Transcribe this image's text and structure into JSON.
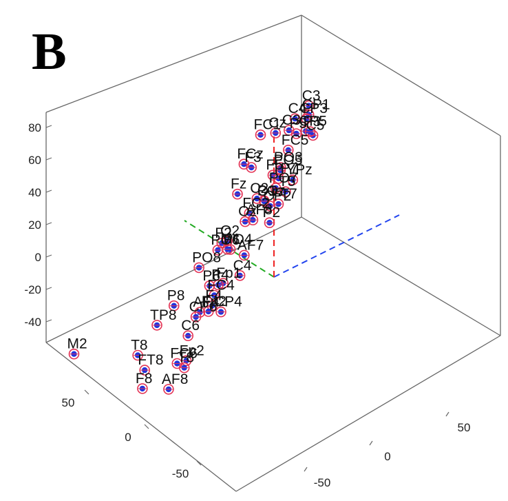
{
  "panel_label": "B",
  "chart_data": {
    "type": "scatter",
    "projection": "3d",
    "title": "",
    "xlabel": "",
    "ylabel": "",
    "zlabel": "",
    "xlim": [
      -80,
      80
    ],
    "ylim": [
      -80,
      80
    ],
    "zlim": [
      -60,
      90
    ],
    "z_ticks": [
      "80",
      "60",
      "40",
      "20",
      "0",
      "-20",
      "-40"
    ],
    "x_ticks": [
      "50",
      "0",
      "-50"
    ],
    "y_ticks": [
      "50",
      "0",
      "-50"
    ],
    "grid": false,
    "marker_colors": {
      "fill": "#2233dd",
      "ring": "#e33355"
    },
    "axis_colors": {
      "x": "#22aa22",
      "y": "#2244ee",
      "z": "#ee2222"
    },
    "electrodes": [
      {
        "label": "FC1",
        "x": 5,
        "y": -5,
        "z": 88
      },
      {
        "label": "C4",
        "x": 12,
        "y": 22,
        "z": 82
      },
      {
        "label": "C3",
        "x": 22,
        "y": 38,
        "z": 78
      },
      {
        "label": "C3",
        "x": 9,
        "y": 16,
        "z": 79
      },
      {
        "label": "Cz",
        "x": 7,
        "y": 6,
        "z": 83
      },
      {
        "label": "FCz",
        "x": -4,
        "y": -22,
        "z": 82
      },
      {
        "label": "F3",
        "x": 2,
        "y": -13,
        "z": 73
      },
      {
        "label": "Fz",
        "x": -15,
        "y": -34,
        "z": 74
      },
      {
        "label": "CP1",
        "x": 29,
        "y": 43,
        "z": 67
      },
      {
        "label": "CP3",
        "x": 41,
        "y": 50,
        "z": 56
      },
      {
        "label": "C5",
        "x": 38,
        "y": 52,
        "z": 46
      },
      {
        "label": "FC5",
        "x": 18,
        "y": 22,
        "z": 60
      },
      {
        "label": "F5",
        "x": 8,
        "y": 5,
        "z": 57
      },
      {
        "label": "C2",
        "x": -3,
        "y": -13,
        "z": 56
      },
      {
        "label": "FC2",
        "x": -13,
        "y": -25,
        "z": 57
      },
      {
        "label": "AF8",
        "x": -12,
        "y": -22,
        "z": 51
      },
      {
        "label": "F2",
        "x": -22,
        "y": -49,
        "z": 54
      },
      {
        "label": "CP5",
        "x": 57,
        "y": 61,
        "z": 36
      },
      {
        "label": "P3",
        "x": 60,
        "y": 66,
        "z": 32
      },
      {
        "label": "YPz",
        "x": 35,
        "y": 37,
        "z": 27
      },
      {
        "label": "FT7",
        "x": 24,
        "y": 20,
        "z": 25
      },
      {
        "label": "CP2",
        "x": 9,
        "y": 4,
        "z": 38
      },
      {
        "label": "AF7",
        "x": -7,
        "y": -24,
        "z": 28
      },
      {
        "label": "Fp1",
        "x": -12,
        "y": -41,
        "z": 21
      },
      {
        "label": "FC4",
        "x": -18,
        "y": -51,
        "z": 21
      },
      {
        "label": "F4",
        "x": -19,
        "y": -53,
        "z": 16
      },
      {
        "label": "AF4",
        "x": -22,
        "y": -63,
        "z": 18
      },
      {
        "label": "Fp2",
        "x": -17,
        "y": -54,
        "z": 12
      },
      {
        "label": "C4",
        "x": -6,
        "y": -26,
        "z": 16
      },
      {
        "label": "T5",
        "x": 40,
        "y": 36,
        "z": 18
      },
      {
        "label": "P5",
        "x": 78,
        "y": 70,
        "z": 21
      },
      {
        "label": "P2",
        "x": 32,
        "y": 20,
        "z": 10
      },
      {
        "label": "TP7",
        "x": 70,
        "y": 53,
        "z": 5
      },
      {
        "label": "PO3",
        "x": 92,
        "y": 70,
        "z": -6
      },
      {
        "label": "PO5",
        "x": 95,
        "y": 72,
        "z": -10
      },
      {
        "label": "POz",
        "x": 76,
        "y": 48,
        "z": -9
      },
      {
        "label": "CP4",
        "x": -3,
        "y": -36,
        "z": -3
      },
      {
        "label": "Fp2",
        "x": -28,
        "y": -76,
        "z": -3
      },
      {
        "label": "T8",
        "x": -29,
        "y": -78,
        "z": -6
      },
      {
        "label": "PO7",
        "x": 102,
        "y": 74,
        "z": -25
      },
      {
        "label": "P4",
        "x": 40,
        "y": -7,
        "z": -19
      },
      {
        "label": "FC6",
        "x": -10,
        "y": -69,
        "z": -16
      },
      {
        "label": "AF8",
        "x": -22,
        "y": -83,
        "z": -20
      },
      {
        "label": "C6",
        "x": 18,
        "y": -42,
        "z": -24
      },
      {
        "label": "O1",
        "x": 118,
        "y": 78,
        "z": -42
      },
      {
        "label": "PO4",
        "x": 102,
        "y": 45,
        "z": -49
      },
      {
        "label": "CP6",
        "x": 53,
        "y": -12,
        "z": -42
      },
      {
        "label": "F8",
        "x": 21,
        "y": -69,
        "z": -45
      },
      {
        "label": "Oz",
        "x": 135,
        "y": 78,
        "z": -62
      },
      {
        "label": "M1",
        "x": 120,
        "y": 56,
        "z": -62
      },
      {
        "label": "PO6",
        "x": 109,
        "y": 42,
        "z": -51
      },
      {
        "label": "P6",
        "x": 80,
        "y": 16,
        "z": -48
      },
      {
        "label": "FT8",
        "x": 54,
        "y": -44,
        "z": -60
      },
      {
        "label": "O2",
        "x": 137,
        "y": 68,
        "z": -70
      },
      {
        "label": "PO8",
        "x": 123,
        "y": 40,
        "z": -67
      },
      {
        "label": "P8",
        "x": 109,
        "y": 14,
        "z": -72
      },
      {
        "label": "TP8",
        "x": 99,
        "y": -4,
        "z": -71
      },
      {
        "label": "T8",
        "x": 84,
        "y": -27,
        "z": -72
      },
      {
        "label": "M2",
        "x": 155,
        "y": -17,
        "z": -107
      }
    ]
  }
}
